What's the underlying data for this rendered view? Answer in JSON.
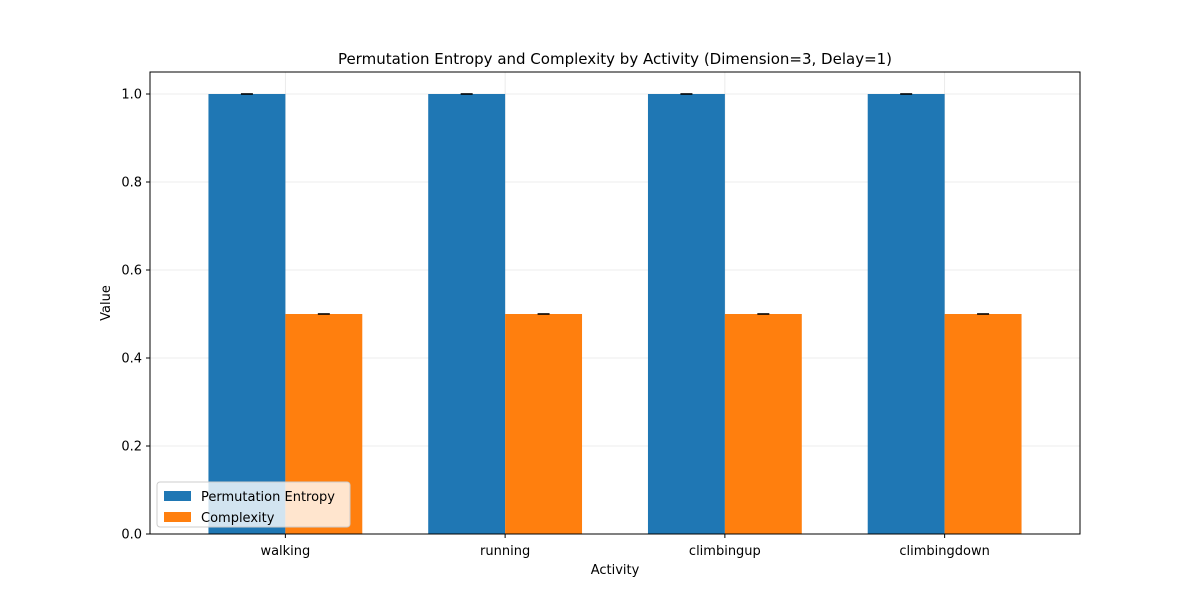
{
  "chart_data": {
    "type": "bar",
    "title": "Permutation Entropy and Complexity by Activity (Dimension=3, Delay=1)",
    "xlabel": "Activity",
    "ylabel": "Value",
    "categories": [
      "walking",
      "running",
      "climbingup",
      "climbingdown"
    ],
    "series": [
      {
        "name": "Permutation Entropy",
        "color": "#1f77b4",
        "values": [
          1.0,
          1.0,
          1.0,
          1.0
        ],
        "errors": [
          0.0,
          0.0,
          0.0,
          0.0
        ]
      },
      {
        "name": "Complexity",
        "color": "#ff7f0e",
        "values": [
          0.5,
          0.5,
          0.5,
          0.5
        ],
        "errors": [
          0.0,
          0.0,
          0.0,
          0.0
        ]
      }
    ],
    "ylim": [
      0,
      1.05
    ],
    "yticks": [
      "0.0",
      "0.2",
      "0.4",
      "0.6",
      "0.8",
      "1.0"
    ],
    "grid": true,
    "legend_position": "lower-left"
  }
}
